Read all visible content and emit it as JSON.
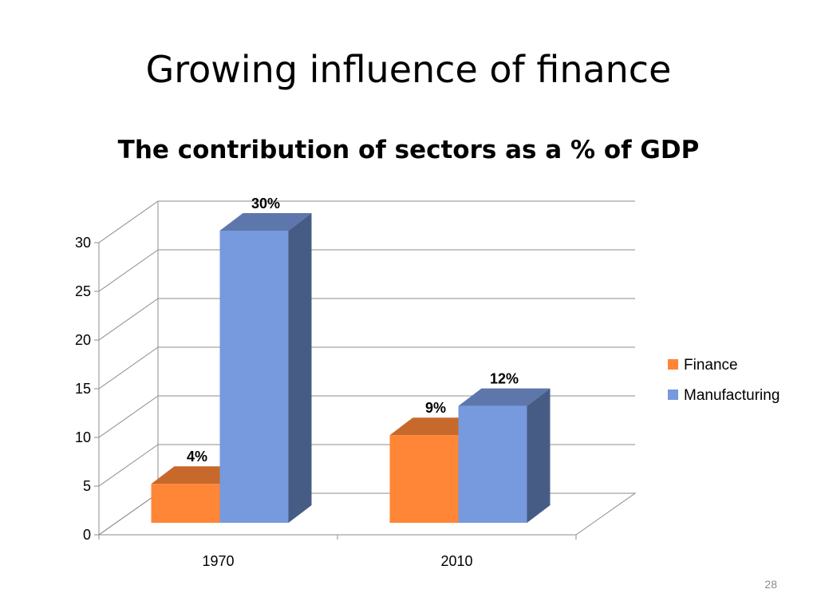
{
  "slide": {
    "title": "Growing influence of finance",
    "page_number": "28"
  },
  "chart_data": {
    "type": "bar",
    "title": "The contribution of sectors as a % of GDP",
    "categories": [
      "1970",
      "2010"
    ],
    "series": [
      {
        "name": "Finance",
        "values": [
          4,
          9
        ],
        "labels": [
          "4%",
          "9%"
        ],
        "color": "#FF8637"
      },
      {
        "name": "Manufacturing",
        "values": [
          30,
          12
        ],
        "labels": [
          "30%",
          "12%"
        ],
        "color": "#7799DD"
      }
    ],
    "yticks": [
      "0",
      "5",
      "10",
      "15",
      "20",
      "25",
      "30"
    ],
    "ylim": [
      0,
      30
    ],
    "xlabel": "",
    "ylabel": "",
    "grid": true,
    "legend": "right",
    "style": "3d-clustered-column"
  }
}
